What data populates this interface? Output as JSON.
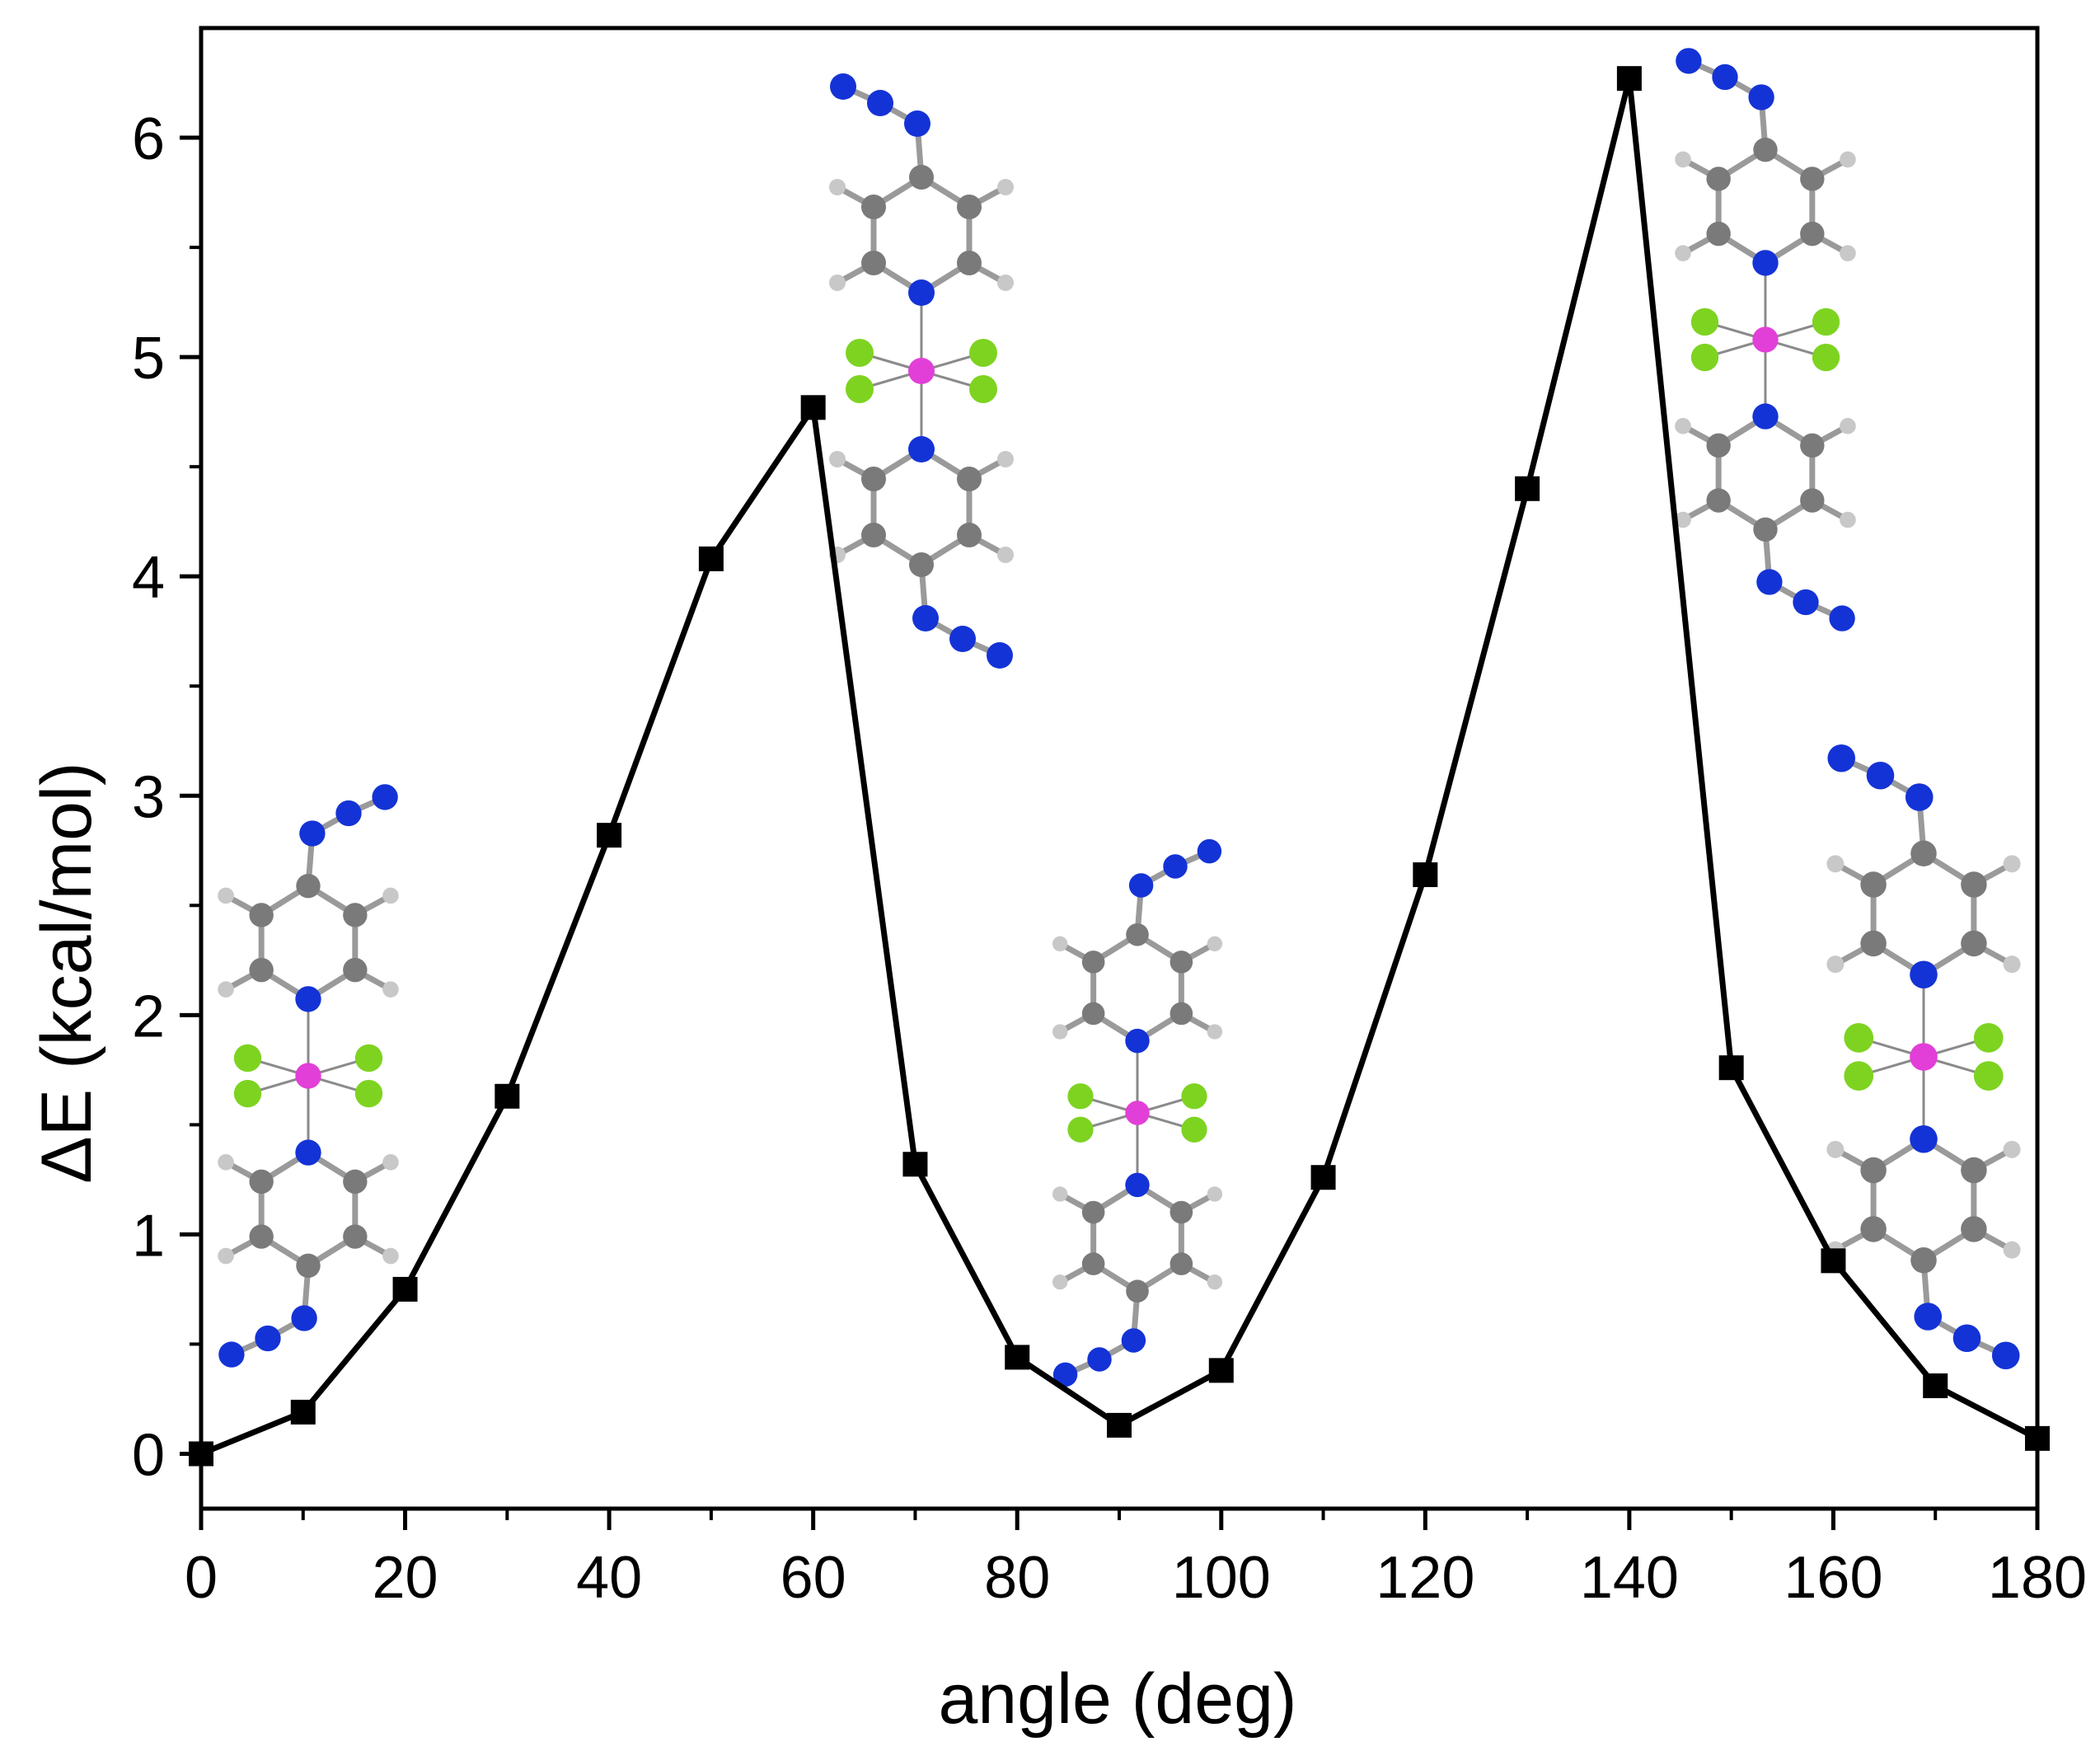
{
  "chart_data": {
    "type": "line",
    "title": "",
    "xlabel": "angle (deg)",
    "ylabel": "ΔE (kcal/mol)",
    "xlim": [
      0,
      180
    ],
    "ylim": [
      -0.25,
      6.5
    ],
    "x_ticks": [
      0,
      20,
      40,
      60,
      80,
      100,
      120,
      140,
      160,
      180
    ],
    "y_ticks": [
      0,
      1,
      2,
      3,
      4,
      5,
      6
    ],
    "grid": false,
    "legend": "none",
    "marker": "square",
    "colors": {
      "line": "#000000",
      "marker": "#000000"
    },
    "series": [
      {
        "x": [
          0,
          10,
          20,
          30,
          40,
          50,
          60,
          70,
          80,
          90,
          100,
          110,
          120,
          130,
          140,
          150,
          160,
          170,
          180
        ],
        "values": [
          0.0,
          0.19,
          0.75,
          1.63,
          2.82,
          4.08,
          4.77,
          1.32,
          0.44,
          0.13,
          0.38,
          1.26,
          2.64,
          4.4,
          6.27,
          1.76,
          0.88,
          0.31,
          0.07
        ]
      }
    ],
    "insets": [
      {
        "x": 10,
        "name": "molecule-inset-0deg"
      },
      {
        "x": 60,
        "name": "molecule-inset-60deg"
      },
      {
        "x": 90,
        "name": "molecule-inset-90deg"
      },
      {
        "x": 140,
        "name": "molecule-inset-140deg"
      },
      {
        "x": 170,
        "name": "molecule-inset-180deg"
      }
    ],
    "atom_colors": {
      "N": "#1433d6",
      "C": "#7a7a7a",
      "H": "#c8c8c8",
      "F": "#7ed321",
      "M": "#e23fd8"
    }
  }
}
